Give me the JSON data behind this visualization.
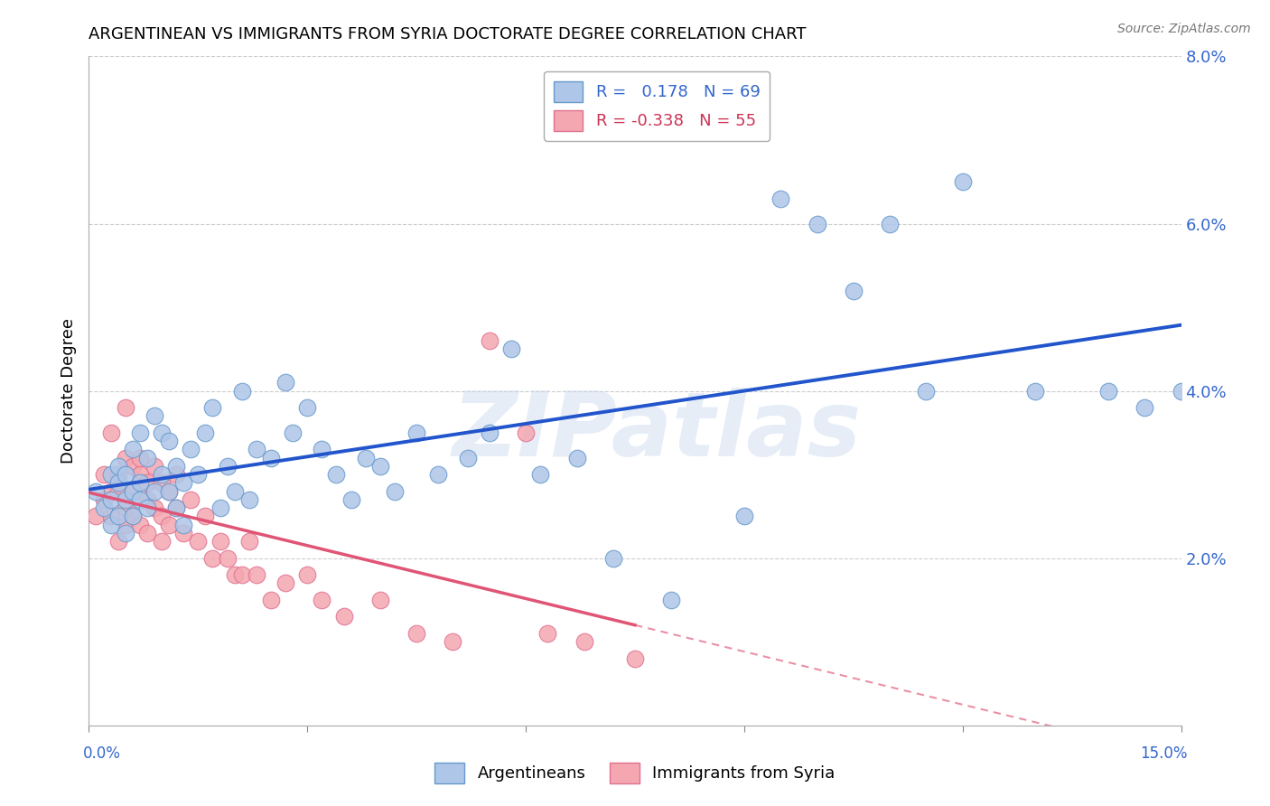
{
  "title": "ARGENTINEAN VS IMMIGRANTS FROM SYRIA DOCTORATE DEGREE CORRELATION CHART",
  "source": "Source: ZipAtlas.com",
  "ylabel": "Doctorate Degree",
  "watermark": "ZIPatlas",
  "legend1_label": "Argentineans",
  "legend2_label": "Immigrants from Syria",
  "r1": 0.178,
  "n1": 69,
  "r2": -0.338,
  "n2": 55,
  "color_blue": "#aec6e8",
  "color_pink": "#f4a7b0",
  "color_blue_line": "#2255cc",
  "color_pink_line": "#e05575",
  "xlim": [
    0.0,
    0.15
  ],
  "ylim": [
    0.0,
    0.08
  ],
  "yticks": [
    0.0,
    0.02,
    0.04,
    0.06,
    0.08
  ],
  "ytick_labels": [
    "",
    "2.0%",
    "4.0%",
    "6.0%",
    "8.0%"
  ],
  "blue_x": [
    0.001,
    0.002,
    0.003,
    0.003,
    0.003,
    0.004,
    0.004,
    0.004,
    0.005,
    0.005,
    0.005,
    0.006,
    0.006,
    0.006,
    0.007,
    0.007,
    0.007,
    0.008,
    0.008,
    0.009,
    0.009,
    0.01,
    0.01,
    0.011,
    0.011,
    0.012,
    0.012,
    0.013,
    0.013,
    0.014,
    0.015,
    0.016,
    0.017,
    0.018,
    0.019,
    0.02,
    0.021,
    0.022,
    0.023,
    0.025,
    0.027,
    0.028,
    0.03,
    0.032,
    0.034,
    0.036,
    0.038,
    0.04,
    0.042,
    0.045,
    0.048,
    0.052,
    0.055,
    0.058,
    0.062,
    0.067,
    0.072,
    0.08,
    0.09,
    0.095,
    0.1,
    0.11,
    0.12,
    0.13,
    0.14,
    0.145,
    0.15,
    0.105,
    0.115
  ],
  "blue_y": [
    0.028,
    0.026,
    0.03,
    0.027,
    0.024,
    0.029,
    0.025,
    0.031,
    0.027,
    0.03,
    0.023,
    0.028,
    0.033,
    0.025,
    0.027,
    0.035,
    0.029,
    0.032,
    0.026,
    0.028,
    0.037,
    0.03,
    0.035,
    0.028,
    0.034,
    0.031,
    0.026,
    0.029,
    0.024,
    0.033,
    0.03,
    0.035,
    0.038,
    0.026,
    0.031,
    0.028,
    0.04,
    0.027,
    0.033,
    0.032,
    0.041,
    0.035,
    0.038,
    0.033,
    0.03,
    0.027,
    0.032,
    0.031,
    0.028,
    0.035,
    0.03,
    0.032,
    0.035,
    0.045,
    0.03,
    0.032,
    0.02,
    0.015,
    0.025,
    0.063,
    0.06,
    0.06,
    0.065,
    0.04,
    0.04,
    0.038,
    0.04,
    0.052,
    0.04
  ],
  "pink_x": [
    0.001,
    0.002,
    0.002,
    0.003,
    0.003,
    0.003,
    0.004,
    0.004,
    0.004,
    0.005,
    0.005,
    0.005,
    0.005,
    0.006,
    0.006,
    0.006,
    0.007,
    0.007,
    0.007,
    0.008,
    0.008,
    0.008,
    0.009,
    0.009,
    0.01,
    0.01,
    0.01,
    0.011,
    0.011,
    0.012,
    0.012,
    0.013,
    0.014,
    0.015,
    0.016,
    0.017,
    0.018,
    0.019,
    0.02,
    0.021,
    0.022,
    0.023,
    0.025,
    0.027,
    0.03,
    0.032,
    0.035,
    0.04,
    0.045,
    0.05,
    0.055,
    0.06,
    0.063,
    0.068,
    0.075
  ],
  "pink_y": [
    0.025,
    0.027,
    0.03,
    0.028,
    0.025,
    0.035,
    0.03,
    0.022,
    0.028,
    0.032,
    0.026,
    0.024,
    0.038,
    0.028,
    0.031,
    0.025,
    0.03,
    0.024,
    0.032,
    0.027,
    0.023,
    0.029,
    0.026,
    0.031,
    0.025,
    0.029,
    0.022,
    0.028,
    0.024,
    0.026,
    0.03,
    0.023,
    0.027,
    0.022,
    0.025,
    0.02,
    0.022,
    0.02,
    0.018,
    0.018,
    0.022,
    0.018,
    0.015,
    0.017,
    0.018,
    0.015,
    0.013,
    0.015,
    0.011,
    0.01,
    0.046,
    0.035,
    0.011,
    0.01,
    0.008
  ]
}
